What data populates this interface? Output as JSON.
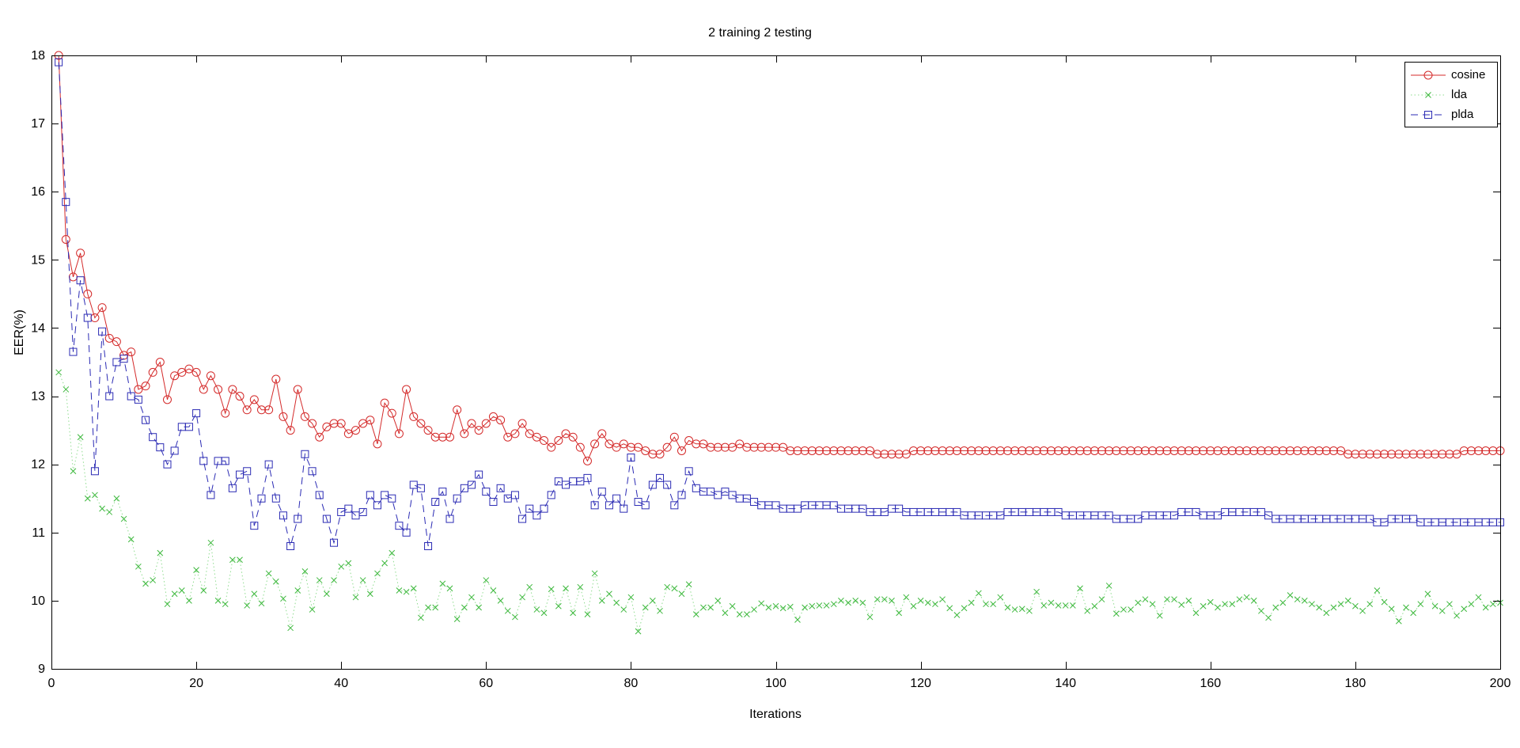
{
  "chart_data": {
    "type": "line",
    "title": "2 training 2 testing",
    "xlabel": "Iterations",
    "ylabel": "EER(%)",
    "xlim": [
      0,
      200
    ],
    "ylim": [
      9,
      18
    ],
    "x_ticks": [
      0,
      20,
      40,
      60,
      80,
      100,
      120,
      140,
      160,
      180,
      200
    ],
    "y_ticks": [
      9,
      10,
      11,
      12,
      13,
      14,
      15,
      16,
      17,
      18
    ],
    "grid": false,
    "legend_position": "top-right",
    "background": "#ffffff",
    "axis_color": "#000000",
    "x_start": 1,
    "x_step": 1,
    "series": [
      {
        "name": "cosine",
        "color": "#d42a2a",
        "line_style": "solid",
        "marker": "circle",
        "values": [
          18.0,
          15.3,
          14.75,
          15.1,
          14.5,
          14.15,
          14.3,
          13.85,
          13.8,
          13.6,
          13.65,
          13.1,
          13.15,
          13.35,
          13.5,
          12.95,
          13.3,
          13.35,
          13.4,
          13.35,
          13.1,
          13.3,
          13.1,
          12.75,
          13.1,
          13.0,
          12.8,
          12.95,
          12.8,
          12.8,
          13.25,
          12.7,
          12.5,
          13.1,
          12.7,
          12.6,
          12.4,
          12.55,
          12.6,
          12.6,
          12.45,
          12.5,
          12.6,
          12.65,
          12.3,
          12.9,
          12.75,
          12.45,
          13.1,
          12.7,
          12.6,
          12.5,
          12.4,
          12.4,
          12.4,
          12.8,
          12.45,
          12.6,
          12.5,
          12.6,
          12.7,
          12.65,
          12.4,
          12.45,
          12.6,
          12.45,
          12.4,
          12.35,
          12.25,
          12.35,
          12.45,
          12.4,
          12.25,
          12.05,
          12.3,
          12.45,
          12.3,
          12.25,
          12.3,
          12.25,
          12.25,
          12.2,
          12.15,
          12.15,
          12.25,
          12.4,
          12.2,
          12.35,
          12.3,
          12.3,
          12.25,
          12.25,
          12.25,
          12.25,
          12.3,
          12.25,
          12.25,
          12.25,
          12.25,
          12.25,
          12.25,
          12.2,
          12.2,
          12.2,
          12.2,
          12.2,
          12.2,
          12.2,
          12.2,
          12.2,
          12.2,
          12.2,
          12.2,
          12.15,
          12.15,
          12.15,
          12.15,
          12.15,
          12.2,
          12.2,
          12.2,
          12.2,
          12.2,
          12.2,
          12.2,
          12.2,
          12.2,
          12.2,
          12.2,
          12.2,
          12.2,
          12.2,
          12.2,
          12.2,
          12.2,
          12.2,
          12.2,
          12.2,
          12.2,
          12.2,
          12.2,
          12.2,
          12.2,
          12.2,
          12.2,
          12.2,
          12.2,
          12.2,
          12.2,
          12.2,
          12.2,
          12.2,
          12.2,
          12.2,
          12.2,
          12.2,
          12.2,
          12.2,
          12.2,
          12.2,
          12.2,
          12.2,
          12.2,
          12.2,
          12.2,
          12.2,
          12.2,
          12.2,
          12.2,
          12.2,
          12.2,
          12.2,
          12.2,
          12.2,
          12.2,
          12.2,
          12.2,
          12.2,
          12.15,
          12.15,
          12.15,
          12.15,
          12.15,
          12.15,
          12.15,
          12.15,
          12.15,
          12.15,
          12.15,
          12.15,
          12.15,
          12.15,
          12.15,
          12.15,
          12.2,
          12.2,
          12.2,
          12.2,
          12.2,
          12.2
        ]
      },
      {
        "name": "lda",
        "color": "#3db83d",
        "line_color": "#8fdc8f",
        "line_style": "dotted",
        "marker": "x",
        "values": [
          13.35,
          13.1,
          11.9,
          12.4,
          11.5,
          11.55,
          11.35,
          11.3,
          11.5,
          11.2,
          10.9,
          10.5,
          10.25,
          10.3,
          10.7,
          9.95,
          10.1,
          10.15,
          10.0,
          10.45,
          10.15,
          10.85,
          10.0,
          9.95,
          10.6,
          10.6,
          9.93,
          10.1,
          9.96,
          10.4,
          10.28,
          10.03,
          9.6,
          10.15,
          10.43,
          9.87,
          10.3,
          10.1,
          10.3,
          10.5,
          10.55,
          10.05,
          10.3,
          10.1,
          10.4,
          10.55,
          10.7,
          10.15,
          10.13,
          10.18,
          9.75,
          9.9,
          9.9,
          10.25,
          10.18,
          9.73,
          9.9,
          10.05,
          9.9,
          10.3,
          10.15,
          10.0,
          9.85,
          9.76,
          10.05,
          10.2,
          9.87,
          9.82,
          10.17,
          9.92,
          10.18,
          9.82,
          10.2,
          9.8,
          10.4,
          10.0,
          10.1,
          9.97,
          9.87,
          10.05,
          9.55,
          9.9,
          10.0,
          9.85,
          10.2,
          10.18,
          10.1,
          10.24,
          9.8,
          9.9,
          9.9,
          10.0,
          9.82,
          9.92,
          9.8,
          9.8,
          9.87,
          9.96,
          9.9,
          9.92,
          9.89,
          9.91,
          9.72,
          9.9,
          9.92,
          9.93,
          9.93,
          9.95,
          10.0,
          9.97,
          10.0,
          9.97,
          9.76,
          10.02,
          10.02,
          10.0,
          9.82,
          10.05,
          9.92,
          10.0,
          9.97,
          9.95,
          10.02,
          9.89,
          9.79,
          9.89,
          9.97,
          10.11,
          9.95,
          9.95,
          10.05,
          9.9,
          9.87,
          9.88,
          9.85,
          10.13,
          9.93,
          9.97,
          9.93,
          9.93,
          9.93,
          10.18,
          9.85,
          9.92,
          10.02,
          10.22,
          9.81,
          9.87,
          9.87,
          9.97,
          10.02,
          9.95,
          9.78,
          10.02,
          10.02,
          9.94,
          10.0,
          9.82,
          9.92,
          9.98,
          9.9,
          9.95,
          9.95,
          10.02,
          10.05,
          10.0,
          9.85,
          9.75,
          9.9,
          9.97,
          10.08,
          10.02,
          10.0,
          9.95,
          9.9,
          9.82,
          9.9,
          9.95,
          10.0,
          9.92,
          9.85,
          9.95,
          10.15,
          9.98,
          9.88,
          9.7,
          9.9,
          9.82,
          9.95,
          10.1,
          9.92,
          9.85,
          9.95,
          9.78,
          9.88,
          9.95,
          10.05,
          9.9,
          9.95,
          9.97
        ]
      },
      {
        "name": "plda",
        "color": "#2b2bb4",
        "line_style": "dashed",
        "marker": "square",
        "values": [
          17.9,
          15.85,
          13.65,
          14.7,
          14.15,
          11.9,
          13.95,
          13.0,
          13.5,
          13.55,
          13.0,
          12.95,
          12.65,
          12.4,
          12.25,
          12.0,
          12.2,
          12.55,
          12.55,
          12.75,
          12.05,
          11.55,
          12.05,
          12.05,
          11.65,
          11.85,
          11.9,
          11.1,
          11.5,
          12.0,
          11.5,
          11.25,
          10.8,
          11.2,
          12.15,
          11.9,
          11.55,
          11.2,
          10.85,
          11.3,
          11.35,
          11.25,
          11.3,
          11.55,
          11.4,
          11.55,
          11.5,
          11.1,
          11.0,
          11.7,
          11.65,
          10.8,
          11.45,
          11.6,
          11.2,
          11.5,
          11.65,
          11.7,
          11.85,
          11.6,
          11.45,
          11.65,
          11.5,
          11.55,
          11.2,
          11.35,
          11.25,
          11.35,
          11.55,
          11.75,
          11.7,
          11.75,
          11.75,
          11.8,
          11.4,
          11.6,
          11.4,
          11.5,
          11.35,
          12.1,
          11.45,
          11.4,
          11.7,
          11.8,
          11.7,
          11.4,
          11.55,
          11.9,
          11.65,
          11.6,
          11.6,
          11.55,
          11.6,
          11.55,
          11.5,
          11.5,
          11.45,
          11.4,
          11.4,
          11.4,
          11.35,
          11.35,
          11.35,
          11.4,
          11.4,
          11.4,
          11.4,
          11.4,
          11.35,
          11.35,
          11.35,
          11.35,
          11.3,
          11.3,
          11.3,
          11.35,
          11.35,
          11.3,
          11.3,
          11.3,
          11.3,
          11.3,
          11.3,
          11.3,
          11.3,
          11.25,
          11.25,
          11.25,
          11.25,
          11.25,
          11.25,
          11.3,
          11.3,
          11.3,
          11.3,
          11.3,
          11.3,
          11.3,
          11.3,
          11.25,
          11.25,
          11.25,
          11.25,
          11.25,
          11.25,
          11.25,
          11.2,
          11.2,
          11.2,
          11.2,
          11.25,
          11.25,
          11.25,
          11.25,
          11.25,
          11.3,
          11.3,
          11.3,
          11.25,
          11.25,
          11.25,
          11.3,
          11.3,
          11.3,
          11.3,
          11.3,
          11.3,
          11.25,
          11.2,
          11.2,
          11.2,
          11.2,
          11.2,
          11.2,
          11.2,
          11.2,
          11.2,
          11.2,
          11.2,
          11.2,
          11.2,
          11.2,
          11.15,
          11.15,
          11.2,
          11.2,
          11.2,
          11.2,
          11.15,
          11.15,
          11.15,
          11.15,
          11.15,
          11.15,
          11.15,
          11.15,
          11.15,
          11.15,
          11.15,
          11.15
        ]
      }
    ]
  }
}
